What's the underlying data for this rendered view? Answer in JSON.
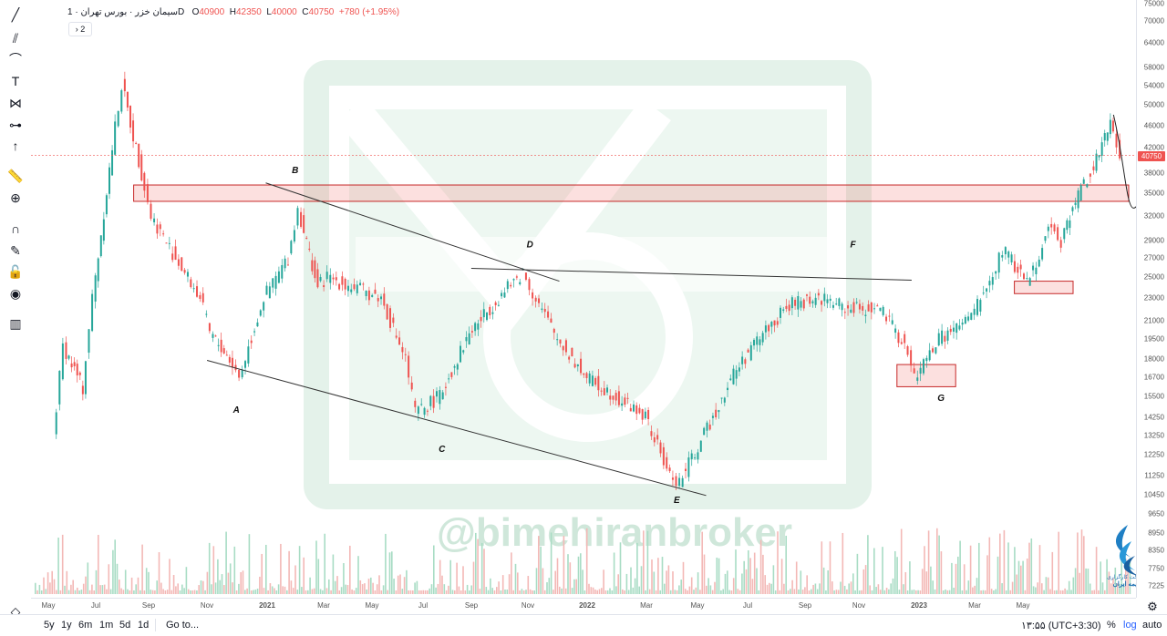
{
  "toolbar": {
    "tools": [
      "trend-line-icon",
      "pitchfork-icon",
      "path-icon",
      "text-icon",
      "pattern-icon",
      "measure-tools-icon",
      "arrow-up-icon",
      "ruler-icon",
      "zoom-in-icon",
      "magnet-icon",
      "lock-pencil-icon",
      "unlock-icon",
      "eye-icon",
      "trash-icon",
      "layers-icon"
    ]
  },
  "legend": {
    "symbol": "سیمان خزر",
    "interval": "1D",
    "exchange": "بورس تهران",
    "open_label": "O",
    "open": "40900",
    "high_label": "H",
    "high": "42350",
    "low_label": "L",
    "low": "40000",
    "close_label": "C",
    "close": "40750",
    "change": "+780 (+1.95%)",
    "indicators_count": "2"
  },
  "watermark": {
    "text": "@bimehiranbroker"
  },
  "brand": {
    "line1": "شرکت کارگزاری",
    "line2": "بیمه ایران"
  },
  "price_axis": {
    "labels": [
      "75000",
      "70000",
      "64000",
      "58000",
      "54000",
      "50000",
      "46000",
      "42000",
      "38000",
      "35000",
      "32000",
      "29000",
      "27000",
      "25000",
      "23000",
      "21000",
      "19500",
      "18000",
      "16700",
      "15500",
      "14250",
      "13250",
      "12250",
      "11250",
      "10450",
      "9650",
      "8950",
      "8350",
      "7750",
      "7225"
    ],
    "current_price": "40750",
    "current_color": "#ef5350"
  },
  "time_axis": {
    "labels": [
      "May",
      "Jul",
      "Sep",
      "Nov",
      "2021",
      "Mar",
      "May",
      "Jul",
      "Sep",
      "Nov",
      "2022",
      "Mar",
      "May",
      "Jul",
      "Sep",
      "Nov",
      "2023",
      "Mar",
      "May"
    ]
  },
  "bottom_bar": {
    "ranges": [
      "5y",
      "1y",
      "6m",
      "1m",
      "5d",
      "1d"
    ],
    "goto": "Go to...",
    "clock": "۱۳:۵۵ (UTC+3:30)",
    "percent": "%",
    "log": "log",
    "auto": "auto"
  },
  "chart_data": {
    "type": "candlestick",
    "symbol": "سیمان خزر",
    "interval": "1D",
    "scale": "log",
    "ylim": [
      7000,
      75000
    ],
    "x_range": [
      "2020-05",
      "2023-05"
    ],
    "close_series": [
      {
        "x": "2020-05",
        "y": 13000
      },
      {
        "x": "2020-05",
        "y": 19000
      },
      {
        "x": "2020-06",
        "y": 16000
      },
      {
        "x": "2020-06",
        "y": 23000
      },
      {
        "x": "2020-07",
        "y": 42000
      },
      {
        "x": "2020-07",
        "y": 54000
      },
      {
        "x": "2020-08",
        "y": 38000
      },
      {
        "x": "2020-08",
        "y": 32000
      },
      {
        "x": "2020-09",
        "y": 27000
      },
      {
        "x": "2020-10",
        "y": 23000
      },
      {
        "x": "2020-10",
        "y": 20000
      },
      {
        "x": "2020-11",
        "y": 18000
      },
      {
        "x": "2020-11",
        "y": 16700
      },
      {
        "x": "2020-12",
        "y": 23000
      },
      {
        "x": "2021-01",
        "y": 27000
      },
      {
        "x": "2021-01",
        "y": 33000
      },
      {
        "x": "2021-02",
        "y": 24000
      },
      {
        "x": "2021-02",
        "y": 25000
      },
      {
        "x": "2021-04",
        "y": 23000
      },
      {
        "x": "2021-05",
        "y": 18000
      },
      {
        "x": "2021-05",
        "y": 14500
      },
      {
        "x": "2021-06",
        "y": 15500
      },
      {
        "x": "2021-07",
        "y": 20000
      },
      {
        "x": "2021-08",
        "y": 23000
      },
      {
        "x": "2021-09",
        "y": 25500
      },
      {
        "x": "2021-09",
        "y": 23500
      },
      {
        "x": "2021-10",
        "y": 19500
      },
      {
        "x": "2021-11",
        "y": 16700
      },
      {
        "x": "2021-12",
        "y": 15500
      },
      {
        "x": "2022-01",
        "y": 14250
      },
      {
        "x": "2022-02",
        "y": 11250
      },
      {
        "x": "2022-02",
        "y": 11000
      },
      {
        "x": "2022-03",
        "y": 13250
      },
      {
        "x": "2022-04",
        "y": 17000
      },
      {
        "x": "2022-05",
        "y": 20000
      },
      {
        "x": "2022-06",
        "y": 22500
      },
      {
        "x": "2022-07",
        "y": 23000
      },
      {
        "x": "2022-08",
        "y": 22000
      },
      {
        "x": "2022-09",
        "y": 22000
      },
      {
        "x": "2022-10",
        "y": 19000
      },
      {
        "x": "2022-10",
        "y": 16700
      },
      {
        "x": "2022-11",
        "y": 19500
      },
      {
        "x": "2022-12",
        "y": 21000
      },
      {
        "x": "2023-01",
        "y": 25000
      },
      {
        "x": "2023-01",
        "y": 28000
      },
      {
        "x": "2023-02",
        "y": 24500
      },
      {
        "x": "2023-03",
        "y": 31000
      },
      {
        "x": "2023-03",
        "y": 29000
      },
      {
        "x": "2023-04",
        "y": 36000
      },
      {
        "x": "2023-04",
        "y": 38000
      },
      {
        "x": "2023-05",
        "y": 46000
      },
      {
        "x": "2023-05",
        "y": 40750
      }
    ],
    "annotations": {
      "labels": [
        {
          "text": "A",
          "x": "2020-11",
          "y": 14500
        },
        {
          "text": "B",
          "x": "2021-01",
          "y": 38000
        },
        {
          "text": "C",
          "x": "2021-06",
          "y": 12400
        },
        {
          "text": "D",
          "x": "2021-09",
          "y": 28200
        },
        {
          "text": "E",
          "x": "2022-02",
          "y": 10100
        },
        {
          "text": "F",
          "x": "2022-08",
          "y": 28200
        },
        {
          "text": "G",
          "x": "2022-11",
          "y": 15200
        }
      ],
      "lines": [
        {
          "name": "lower-trendline",
          "from": {
            "x": "2020-10",
            "y": 17900
          },
          "to": {
            "x": "2022-03",
            "y": 10400
          }
        },
        {
          "name": "upper-trendline",
          "from": {
            "x": "2020-12",
            "y": 36500
          },
          "to": {
            "x": "2021-10",
            "y": 24600
          }
        },
        {
          "name": "horizontal-neckline",
          "from": {
            "x": "2021-07",
            "y": 25900
          },
          "to": {
            "x": "2022-10",
            "y": 24700
          }
        }
      ],
      "zones": [
        {
          "name": "resistance-zone",
          "from": {
            "x": "2020-08",
            "y": 36200
          },
          "to": {
            "x": "2023-06",
            "y": 33900
          }
        },
        {
          "name": "g-zone",
          "from": {
            "x": "2022-10",
            "y": 17600
          },
          "to": {
            "x": "2022-11",
            "y": 16100
          }
        },
        {
          "name": "feb-zone",
          "from": {
            "x": "2023-02",
            "y": 24600
          },
          "to": {
            "x": "2023-03",
            "y": 23400
          }
        }
      ]
    }
  }
}
